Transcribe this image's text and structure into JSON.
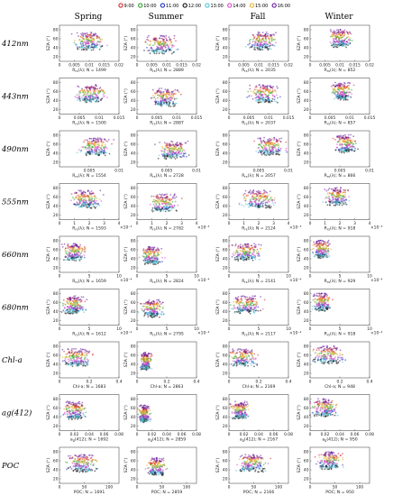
{
  "legend": {
    "items": [
      {
        "label": "9:00",
        "color": "#d62728"
      },
      {
        "label": "10:00",
        "color": "#2ca02c"
      },
      {
        "label": "11:00",
        "color": "#1f2fbf"
      },
      {
        "label": "12:00",
        "color": "#111111"
      },
      {
        "label": "13:00",
        "color": "#4fc4d6"
      },
      {
        "label": "14:00",
        "color": "#e046c8"
      },
      {
        "label": "15:00",
        "color": "#e3b52a"
      },
      {
        "label": "16:00",
        "color": "#6a1b9a"
      }
    ]
  },
  "seasons": [
    "Spring",
    "Summer",
    "Fall",
    "Winter"
  ],
  "rows": [
    {
      "label": "412nm",
      "xlabel": "R",
      "sub": "rs",
      "tail": "(λ); N = ",
      "xmax": 0.02,
      "ticks": [
        "0",
        "0.005",
        "0.01",
        "0.015",
        "0.02"
      ],
      "sci": "",
      "vals": [
        0,
        0.005,
        0.01,
        0.015,
        0.02
      ],
      "n": [
        "1499",
        "2889",
        "2035",
        "852"
      ],
      "center": [
        0.01,
        0.008,
        0.011,
        0.01
      ],
      "spread": [
        0.004,
        0.004,
        0.004,
        0.003
      ]
    },
    {
      "label": "443nm",
      "xlabel": "R",
      "sub": "rs",
      "tail": "(λ); N = ",
      "xmax": 0.015,
      "ticks": [
        "0",
        "0.005",
        "0.01",
        "0.015"
      ],
      "sci": "",
      "vals": [
        0,
        0.005,
        0.01,
        0.015
      ],
      "n": [
        "1500",
        "2887",
        "2037",
        "857"
      ],
      "center": [
        0.008,
        0.007,
        0.009,
        0.008
      ],
      "spread": [
        0.003,
        0.003,
        0.003,
        0.002
      ]
    },
    {
      "label": "490nm",
      "xlabel": "R",
      "sub": "rs",
      "tail": "(λ); N = ",
      "xmax": 0.01,
      "ticks": [
        "0.005",
        "0.01"
      ],
      "sci": "",
      "vals": [
        0.005,
        0.01
      ],
      "n": [
        "1554",
        "2728",
        "2057",
        "866"
      ],
      "center": [
        0.006,
        0.006,
        0.007,
        0.006
      ],
      "spread": [
        0.002,
        0.002,
        0.002,
        0.0015
      ]
    },
    {
      "label": "555nm",
      "xlabel": "R",
      "sub": "rs",
      "tail": "(λ); N = ",
      "xmax": 4,
      "ticks": [
        "0",
        "1",
        "2",
        "3",
        "4"
      ],
      "sci": "×10⁻³",
      "vals": [
        0,
        1,
        2,
        3,
        4
      ],
      "n": [
        "1593",
        "2782",
        "2124",
        "918"
      ],
      "center": [
        1.8,
        1.8,
        2.0,
        1.8
      ],
      "spread": [
        0.8,
        0.8,
        0.9,
        0.6
      ]
    },
    {
      "label": "660nm",
      "xlabel": "R",
      "sub": "rs",
      "tail": "(λ); N = ",
      "xmax": 10,
      "ticks": [
        "0",
        "5",
        "10"
      ],
      "sci": "×10⁻⁴",
      "vals": [
        0,
        5,
        10
      ],
      "n": [
        "1659",
        "2824",
        "2141",
        "929"
      ],
      "center": [
        2.5,
        2.5,
        3.0,
        2.0
      ],
      "spread": [
        1.5,
        1.5,
        2.0,
        1.2
      ]
    },
    {
      "label": "680nm",
      "xlabel": "R",
      "sub": "rs",
      "tail": "(λ); N = ",
      "xmax": 10,
      "ticks": [
        "0",
        "5",
        "10"
      ],
      "sci": "×10⁻⁴",
      "vals": [
        0,
        5,
        10
      ],
      "n": [
        "1612",
        "2795",
        "2117",
        "918"
      ],
      "center": [
        2.5,
        2.5,
        3.0,
        2.0
      ],
      "spread": [
        1.5,
        1.5,
        2.0,
        1.2
      ]
    },
    {
      "label": "Chl-a",
      "xlabel": "Chl-a",
      "sub": "",
      "tail": "; N = ",
      "xmax": 0.4,
      "ticks": [
        "0",
        "0.2",
        "0.4"
      ],
      "sci": "",
      "vals": [
        0,
        0.2,
        0.4
      ],
      "n": [
        "1683",
        "2863",
        "2169",
        "948"
      ],
      "center": [
        0.12,
        0.06,
        0.1,
        0.12
      ],
      "spread": [
        0.08,
        0.03,
        0.08,
        0.08
      ]
    },
    {
      "label": "ag(412)",
      "xlabel": "a",
      "sub": "g",
      "tail": "(412); N = ",
      "xmax": 0.08,
      "ticks": [
        "0",
        "0.02",
        "0.04",
        "0.06",
        "0.08"
      ],
      "sci": "",
      "vals": [
        0,
        0.02,
        0.04,
        0.06,
        0.08
      ],
      "n": [
        "1692",
        "2859",
        "2167",
        "950"
      ],
      "center": [
        0.02,
        0.01,
        0.015,
        0.02
      ],
      "spread": [
        0.012,
        0.006,
        0.01,
        0.015
      ]
    },
    {
      "label": "POC",
      "xlabel": "POC",
      "sub": "",
      "tail": "; N = ",
      "xmax": 120,
      "ticks": [
        "0",
        "50",
        "100"
      ],
      "sci": "",
      "vals": [
        0,
        50,
        100
      ],
      "n": [
        "1691",
        "2859",
        "2166",
        "950"
      ],
      "center": [
        45,
        40,
        45,
        40
      ],
      "spread": [
        25,
        15,
        25,
        20
      ]
    }
  ],
  "y_axis": {
    "label": "SZA (°)",
    "ticks": [
      "20",
      "40",
      "60",
      "80"
    ],
    "vals": [
      20,
      40,
      60,
      80
    ],
    "ylim": [
      10,
      90
    ]
  },
  "chart_data": {
    "type": "scatter",
    "note_source": "Small multiples: 9 variables × 4 seasons; y = SZA (°), color = hour of day",
    "series": [
      {
        "name": "9:00",
        "sza": 65
      },
      {
        "name": "10:00",
        "sza": 55
      },
      {
        "name": "11:00",
        "sza": 45
      },
      {
        "name": "12:00",
        "sza": 40
      },
      {
        "name": "13:00",
        "sza": 42
      },
      {
        "name": "14:00",
        "sza": 50
      },
      {
        "name": "15:00",
        "sza": 60
      },
      {
        "name": "16:00",
        "sza": 70
      }
    ],
    "ylabel": "SZA (°)",
    "ylim": [
      10,
      90
    ],
    "grid": false,
    "legend": "top"
  }
}
